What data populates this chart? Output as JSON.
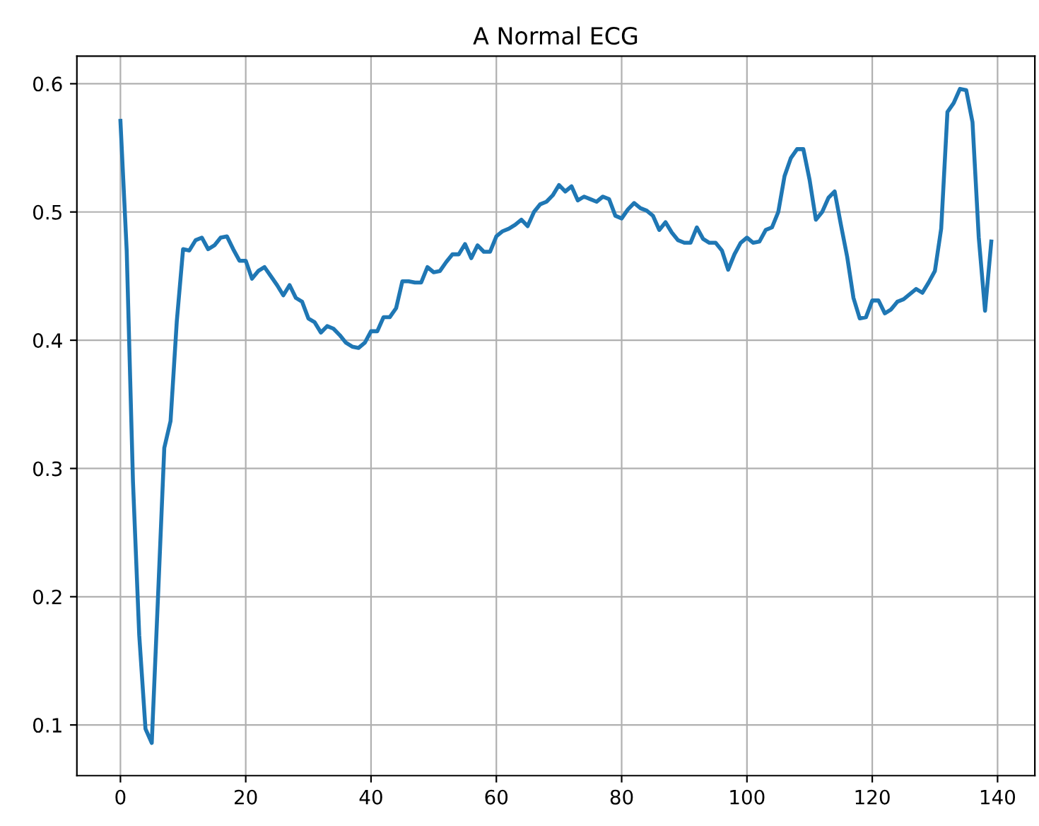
{
  "chart_data": {
    "type": "line",
    "title": "A Normal ECG",
    "xlim": [
      -6.95,
      145.95
    ],
    "ylim": [
      0.0605,
      0.6215
    ],
    "xticks": [
      0,
      20,
      40,
      60,
      80,
      100,
      120,
      140
    ],
    "yticks": [
      0.1,
      0.2,
      0.3,
      0.4,
      0.5,
      0.6
    ],
    "grid": true,
    "legend": false,
    "series": [
      {
        "color": "#1f77b4",
        "x": [
          0,
          1,
          2,
          3,
          4,
          5,
          6,
          7,
          8,
          9,
          10,
          11,
          12,
          13,
          14,
          15,
          16,
          17,
          18,
          19,
          20,
          21,
          22,
          23,
          24,
          25,
          26,
          27,
          28,
          29,
          30,
          31,
          32,
          33,
          34,
          35,
          36,
          37,
          38,
          39,
          40,
          41,
          42,
          43,
          44,
          45,
          46,
          47,
          48,
          49,
          50,
          51,
          52,
          53,
          54,
          55,
          56,
          57,
          58,
          59,
          60,
          61,
          62,
          63,
          64,
          65,
          66,
          67,
          68,
          69,
          70,
          71,
          72,
          73,
          74,
          75,
          76,
          77,
          78,
          79,
          80,
          81,
          82,
          83,
          84,
          85,
          86,
          87,
          88,
          89,
          90,
          91,
          92,
          93,
          94,
          95,
          96,
          97,
          98,
          99,
          100,
          101,
          102,
          103,
          104,
          105,
          106,
          107,
          108,
          109,
          110,
          111,
          112,
          113,
          114,
          115,
          116,
          117,
          118,
          119,
          120,
          121,
          122,
          123,
          124,
          125,
          126,
          127,
          128,
          129,
          130,
          131,
          132,
          133,
          134,
          135,
          136,
          137,
          138,
          139
        ],
        "values": [
          0.571,
          0.47,
          0.29,
          0.17,
          0.097,
          0.086,
          0.2,
          0.316,
          0.337,
          0.415,
          0.471,
          0.47,
          0.478,
          0.48,
          0.471,
          0.474,
          0.48,
          0.481,
          0.471,
          0.462,
          0.462,
          0.448,
          0.454,
          0.457,
          0.45,
          0.443,
          0.435,
          0.443,
          0.433,
          0.43,
          0.417,
          0.414,
          0.406,
          0.411,
          0.409,
          0.404,
          0.398,
          0.395,
          0.394,
          0.398,
          0.407,
          0.407,
          0.418,
          0.418,
          0.425,
          0.446,
          0.446,
          0.445,
          0.445,
          0.457,
          0.453,
          0.454,
          0.461,
          0.467,
          0.467,
          0.475,
          0.464,
          0.474,
          0.469,
          0.469,
          0.481,
          0.485,
          0.487,
          0.49,
          0.494,
          0.489,
          0.5,
          0.506,
          0.508,
          0.513,
          0.521,
          0.516,
          0.52,
          0.509,
          0.512,
          0.51,
          0.508,
          0.512,
          0.51,
          0.497,
          0.495,
          0.502,
          0.507,
          0.503,
          0.501,
          0.497,
          0.486,
          0.492,
          0.484,
          0.478,
          0.476,
          0.476,
          0.488,
          0.479,
          0.476,
          0.476,
          0.47,
          0.455,
          0.467,
          0.476,
          0.48,
          0.476,
          0.477,
          0.486,
          0.488,
          0.5,
          0.528,
          0.542,
          0.549,
          0.549,
          0.525,
          0.494,
          0.5,
          0.511,
          0.516,
          0.49,
          0.465,
          0.433,
          0.417,
          0.418,
          0.431,
          0.431,
          0.421,
          0.424,
          0.43,
          0.432,
          0.436,
          0.44,
          0.437,
          0.445,
          0.454,
          0.487,
          0.578,
          0.585,
          0.596,
          0.595,
          0.57,
          0.48,
          0.423,
          0.477
        ]
      }
    ]
  }
}
